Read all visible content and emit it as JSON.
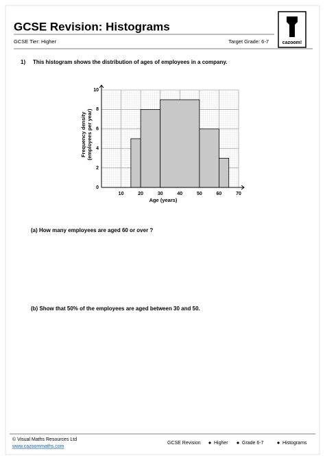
{
  "header": {
    "title": "GCSE Revision: Histograms",
    "tier": "GCSE Tier: Higher",
    "grade": "Target Grade: 6-7",
    "logo": "cazoom!"
  },
  "question": {
    "number": "1)",
    "text": "This histogram shows the distribution of ages of employees in a company."
  },
  "chart_data": {
    "type": "histogram",
    "xlabel": "Age (years)",
    "ylabel": [
      "Frequency density",
      "(employees per year)"
    ],
    "bins": [
      15,
      20,
      30,
      50,
      60,
      65
    ],
    "values": [
      5,
      8,
      9,
      6,
      3
    ],
    "color": "#c8c8c8",
    "xlim": [
      0,
      70
    ],
    "xticks": [
      10,
      20,
      30,
      40,
      50,
      60,
      70
    ],
    "ylim": [
      0,
      10
    ],
    "yticks": [
      0,
      2,
      4,
      6,
      8,
      10
    ],
    "grid": true
  },
  "parts": [
    "(a) How many employees are aged 60 or over ?",
    "(b) Show that 50% of the employees are aged between 30 and 50."
  ],
  "footer": {
    "copyright": "© Visual Maths Resources Ltd",
    "website": "www.cazoommaths.com",
    "tags": [
      "GCSE Revision",
      "Higher",
      "Grade 6-7",
      "Histograms"
    ]
  }
}
